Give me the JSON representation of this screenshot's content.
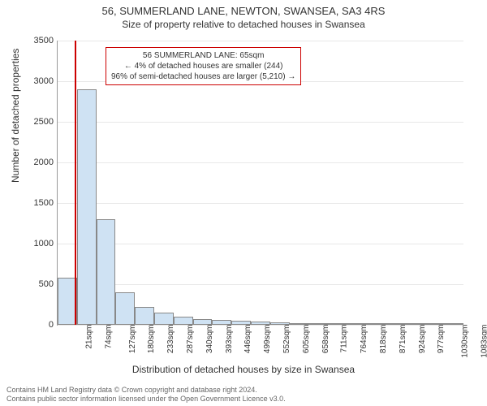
{
  "title": "56, SUMMERLAND LANE, NEWTON, SWANSEA, SA3 4RS",
  "subtitle": "Size of property relative to detached houses in Swansea",
  "ylabel": "Number of detached properties",
  "xlabel": "Distribution of detached houses by size in Swansea",
  "chart": {
    "type": "histogram",
    "ylim": [
      0,
      3500
    ],
    "ytick_step": 500,
    "yticks": [
      0,
      500,
      1000,
      1500,
      2000,
      2500,
      3000,
      3500
    ],
    "xticks": [
      "21sqm",
      "74sqm",
      "127sqm",
      "180sqm",
      "233sqm",
      "287sqm",
      "340sqm",
      "393sqm",
      "446sqm",
      "499sqm",
      "552sqm",
      "605sqm",
      "658sqm",
      "711sqm",
      "764sqm",
      "818sqm",
      "871sqm",
      "924sqm",
      "977sqm",
      "1030sqm",
      "1083sqm"
    ],
    "bar_color": "#cfe2f3",
    "bar_border": "#888888",
    "grid_color": "#e8e8e8",
    "marker_color": "#cc0000",
    "marker_position_sqm": 65,
    "values": [
      580,
      2900,
      1300,
      400,
      220,
      150,
      100,
      70,
      60,
      50,
      40,
      30,
      25,
      20,
      15,
      12,
      10,
      8,
      6,
      5,
      4
    ]
  },
  "annotation": {
    "line1": "56 SUMMERLAND LANE: 65sqm",
    "line2": "← 4% of detached houses are smaller (244)",
    "line3": "96% of semi-detached houses are larger (5,210) →"
  },
  "footer": {
    "line1": "Contains HM Land Registry data © Crown copyright and database right 2024.",
    "line2": "Contains public sector information licensed under the Open Government Licence v3.0."
  }
}
